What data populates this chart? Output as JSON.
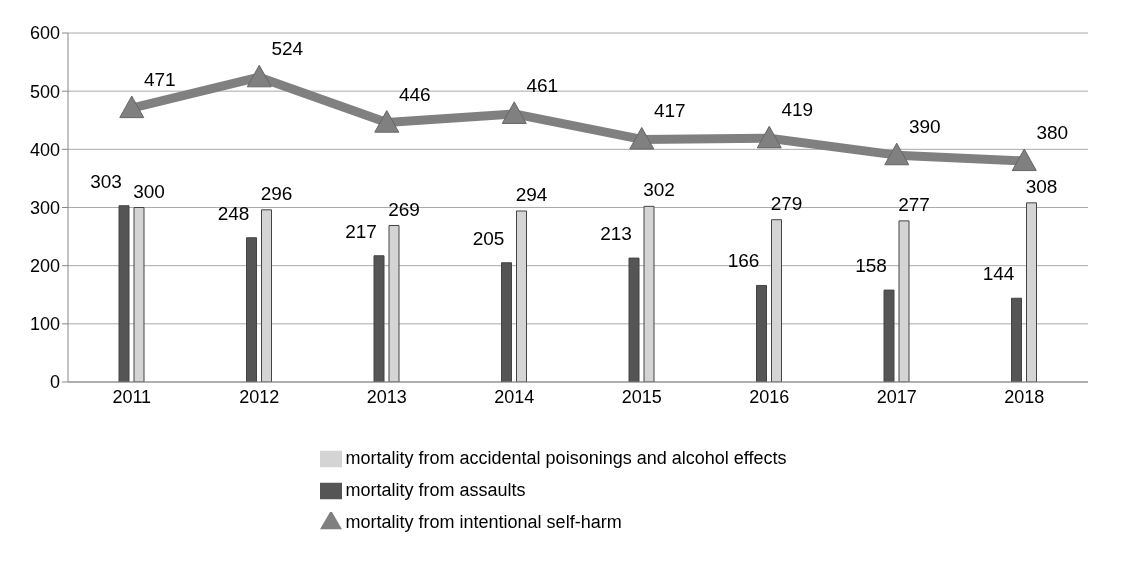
{
  "chart_data": {
    "type": "bar",
    "categories": [
      "2011",
      "2012",
      "2013",
      "2014",
      "2015",
      "2016",
      "2017",
      "2018"
    ],
    "series": [
      {
        "name": "mortality from assaults",
        "color": "#555555",
        "values": [
          303,
          248,
          217,
          205,
          213,
          166,
          158,
          144
        ]
      },
      {
        "name": "mortality from accidental poisonings and alcohol effects",
        "color": "#d4d4d4",
        "values": [
          300,
          296,
          269,
          294,
          302,
          279,
          277,
          308
        ]
      },
      {
        "name": "mortality from intentional self-harm",
        "type": "line",
        "color": "#808080",
        "values": [
          471,
          524,
          446,
          461,
          417,
          419,
          390,
          380
        ]
      }
    ],
    "ylim": [
      0,
      600
    ],
    "yticks": [
      0,
      100,
      200,
      300,
      400,
      500,
      600
    ],
    "grid": "y",
    "legend": "bottom",
    "marker": "triangle",
    "data_labels": true
  }
}
